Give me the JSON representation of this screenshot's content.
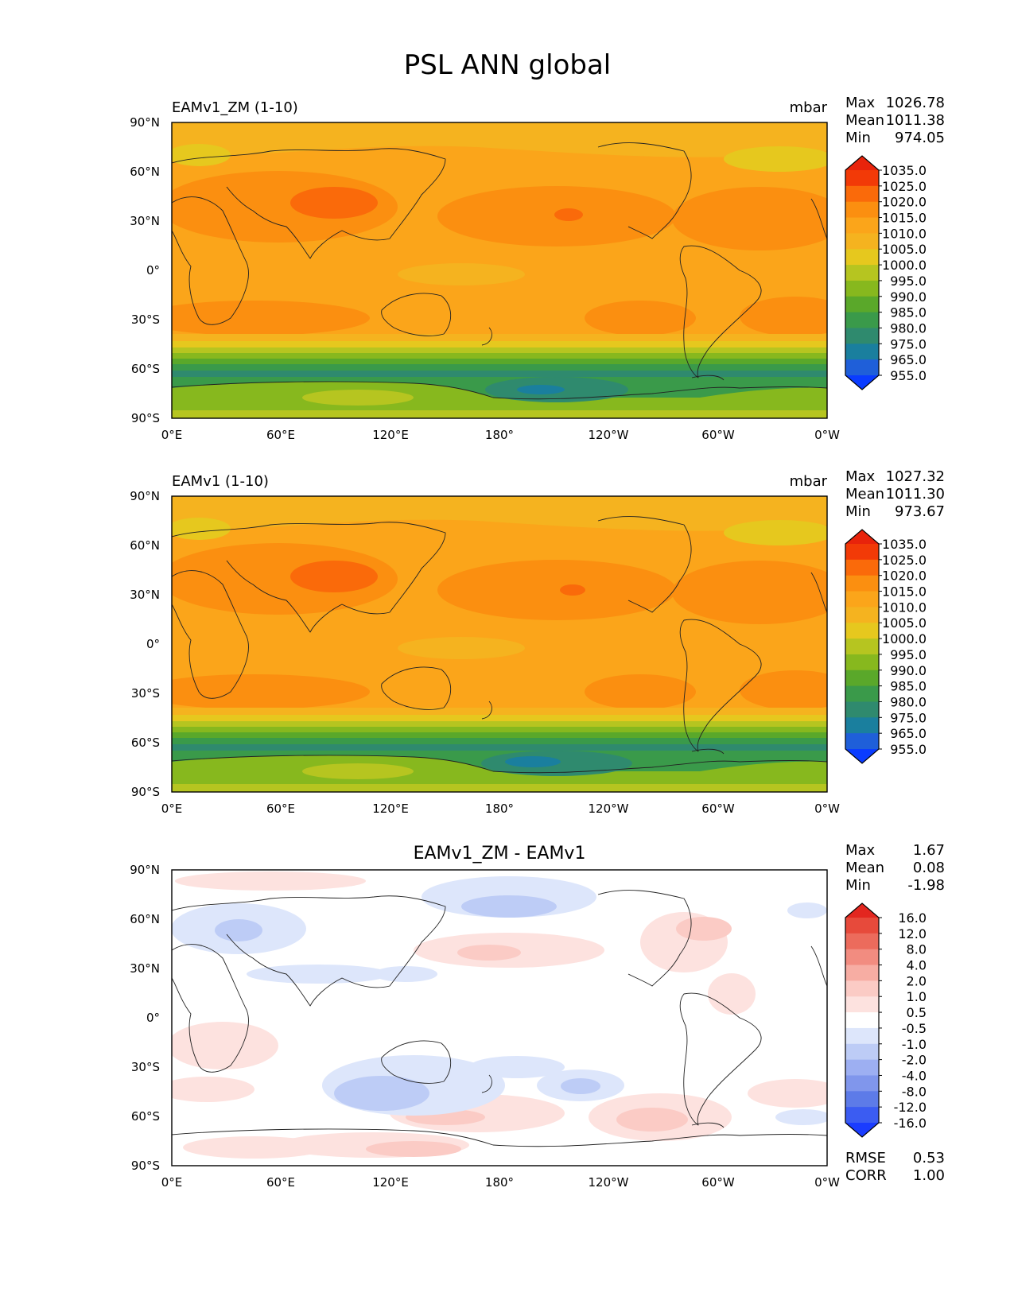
{
  "figure": {
    "title": "PSL ANN global",
    "colors": {
      "seq_colormap": [
        "#0a3cff",
        "#1f5fd9",
        "#1a7f9e",
        "#2f8a6e",
        "#3a9a4a",
        "#5aa82a",
        "#87b81e",
        "#b6c520",
        "#e6c81e",
        "#f5b31f",
        "#fba51a",
        "#fb8f10",
        "#fa6a0a",
        "#f23a07",
        "#e8230b"
      ],
      "diff_colormap": [
        "#1a3cff",
        "#3b5cf2",
        "#5d7be8",
        "#8096ec",
        "#9daff2",
        "#bdccf6",
        "#dde6fb",
        "#ffffff",
        "#fde2df",
        "#fbcbc5",
        "#f7ada3",
        "#f28c80",
        "#ec6b5c",
        "#e74a3b",
        "#e3261f"
      ]
    }
  },
  "chart_data": [
    {
      "type": "heatmap",
      "id": "test",
      "label_left": "EAMv1_ZM (1-10)",
      "units": "mbar",
      "stats": {
        "max_label": "Max",
        "mean_label": "Mean",
        "min_label": "Min",
        "max": "1026.78",
        "mean": "1011.38",
        "min": "974.05"
      },
      "x_ticks": [
        "0°E",
        "60°E",
        "120°E",
        "180°",
        "120°W",
        "60°W",
        "0°W"
      ],
      "y_ticks": [
        "90°N",
        "60°N",
        "30°N",
        "0°",
        "30°S",
        "60°S",
        "90°S"
      ],
      "xlim": [
        0,
        360
      ],
      "ylim": [
        -90,
        90
      ],
      "colorbar_levels": [
        "1035.0",
        "1025.0",
        "1020.0",
        "1015.0",
        "1010.0",
        "1005.0",
        "1000.0",
        "995.0",
        "990.0",
        "985.0",
        "980.0",
        "975.0",
        "965.0",
        "955.0"
      ],
      "colormap": "sequential"
    },
    {
      "type": "heatmap",
      "id": "reference",
      "label_left": "EAMv1 (1-10)",
      "units": "mbar",
      "stats": {
        "max_label": "Max",
        "mean_label": "Mean",
        "min_label": "Min",
        "max": "1027.32",
        "mean": "1011.30",
        "min": "973.67"
      },
      "x_ticks": [
        "0°E",
        "60°E",
        "120°E",
        "180°",
        "120°W",
        "60°W",
        "0°W"
      ],
      "y_ticks": [
        "90°N",
        "60°N",
        "30°N",
        "0°",
        "30°S",
        "60°S",
        "90°S"
      ],
      "xlim": [
        0,
        360
      ],
      "ylim": [
        -90,
        90
      ],
      "colorbar_levels": [
        "1035.0",
        "1025.0",
        "1020.0",
        "1015.0",
        "1010.0",
        "1005.0",
        "1000.0",
        "995.0",
        "990.0",
        "985.0",
        "980.0",
        "975.0",
        "965.0",
        "955.0"
      ],
      "colormap": "sequential"
    },
    {
      "type": "heatmap",
      "id": "difference",
      "title": "EAMv1_ZM - EAMv1",
      "stats": {
        "max_label": "Max",
        "mean_label": "Mean",
        "min_label": "Min",
        "max": "1.67",
        "mean": "0.08",
        "min": "-1.98"
      },
      "metrics": {
        "rmse_label": "RMSE",
        "corr_label": "CORR",
        "rmse": "0.53",
        "corr": "1.00"
      },
      "x_ticks": [
        "0°E",
        "60°E",
        "120°E",
        "180°",
        "120°W",
        "60°W",
        "0°W"
      ],
      "y_ticks": [
        "90°N",
        "60°N",
        "30°N",
        "0°",
        "30°S",
        "60°S",
        "90°S"
      ],
      "xlim": [
        0,
        360
      ],
      "ylim": [
        -90,
        90
      ],
      "colorbar_levels": [
        "16.0",
        "12.0",
        "8.0",
        "4.0",
        "2.0",
        "1.0",
        "0.5",
        "-0.5",
        "-1.0",
        "-2.0",
        "-4.0",
        "-8.0",
        "-12.0",
        "-16.0"
      ],
      "colormap": "diverging"
    }
  ]
}
